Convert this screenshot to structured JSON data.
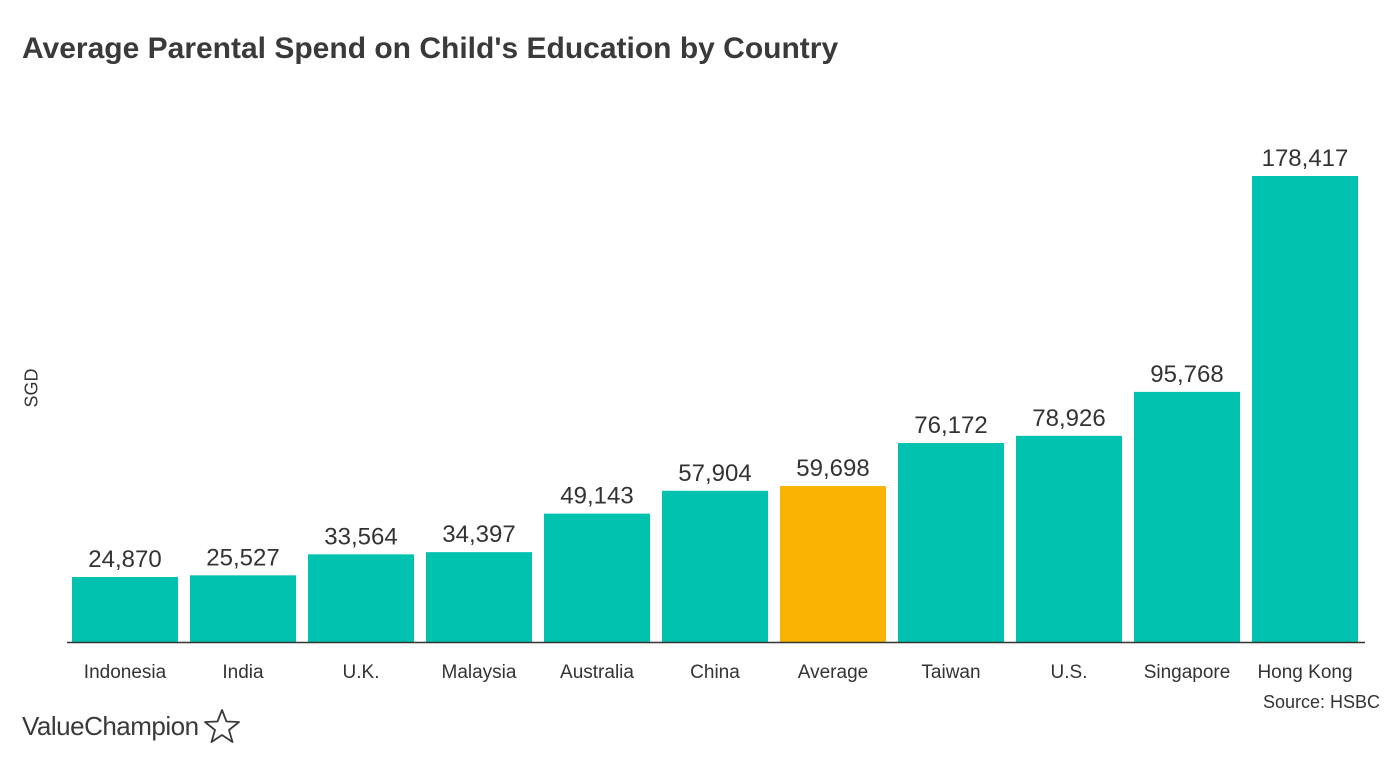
{
  "chart_data": {
    "type": "bar",
    "title": "Average Parental Spend on Child's Education by Country",
    "xlabel": "",
    "ylabel": "SGD",
    "categories": [
      "Indonesia",
      "India",
      "U.K.",
      "Malaysia",
      "Australia",
      "China",
      "Average",
      "Taiwan",
      "U.S.",
      "Singapore",
      "Hong Kong"
    ],
    "values": [
      24870,
      25527,
      33564,
      34397,
      49143,
      57904,
      59698,
      76172,
      78926,
      95768,
      178417
    ],
    "value_labels": [
      "24,870",
      "25,527",
      "33,564",
      "34,397",
      "49,143",
      "57,904",
      "59,698",
      "76,172",
      "78,926",
      "95,768",
      "178,417"
    ],
    "highlight_category": "Average",
    "ylim": [
      0,
      178417
    ],
    "grid": false,
    "legend": "none"
  },
  "colors": {
    "bar": "#00c2ae",
    "highlight": "#f9b302",
    "axis": "#333333",
    "text": "#333333"
  },
  "source": "Source: HSBC",
  "brand": {
    "name": "ValueChampion",
    "icon": "star-outline-icon"
  }
}
